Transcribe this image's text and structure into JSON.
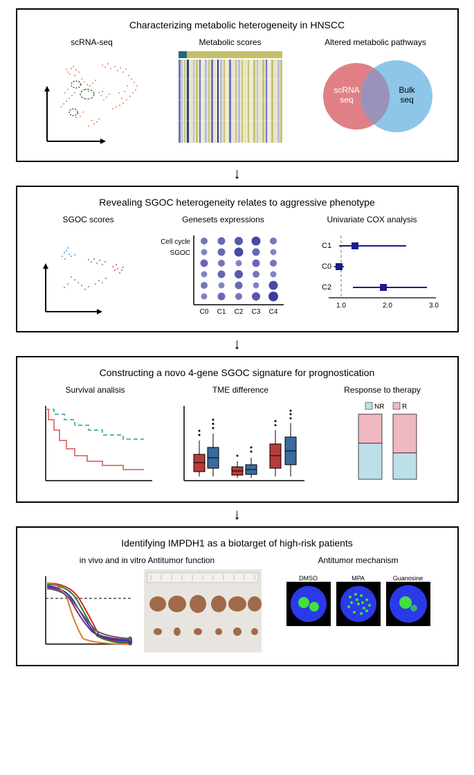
{
  "panel1": {
    "title": "Characterizing metabolic heterogeneity in HNSCC",
    "scrna_label": "scRNA-seq",
    "metab_label": "Metabolic scores",
    "venn_label": "Altered metabolic pathways",
    "venn_left": "scRNA\nseq",
    "venn_right": "Bulk\nseq",
    "scatter_color": "#e08a6e",
    "heatmap_header_left": "#1f6b7a",
    "heatmap_header_right": "#c4c06a",
    "heatmap_colors": [
      "#2e3a8c",
      "#6b74c2",
      "#b8bde0",
      "#e8e6c2",
      "#c9c36e",
      "#f2f0d8"
    ],
    "venn_left_color": "#e08086",
    "venn_right_color": "#8ec6ea",
    "venn_overlap_color": "#9a92b8"
  },
  "panel2": {
    "title": "Revealing SGOC heterogeneity relates to aggressive phenotype",
    "scores_label": "SGOC scores",
    "geneset_label": "Genesets expressions",
    "cox_label": "Univariate COX analysis",
    "dot_row_labels": [
      "Cell cycle",
      "SGOC"
    ],
    "dot_col_labels": [
      "C0",
      "C1",
      "C2",
      "C3",
      "C4"
    ],
    "dot_color": "#3b3b9e",
    "dot_matrix": [
      [
        6,
        7,
        8,
        9,
        6
      ],
      [
        5,
        7,
        9,
        7,
        5
      ],
      [
        7,
        6,
        5,
        7,
        6
      ],
      [
        5,
        7,
        8,
        6,
        5
      ],
      [
        6,
        5,
        7,
        5,
        9
      ],
      [
        5,
        7,
        6,
        8,
        10
      ]
    ],
    "cox_items": [
      {
        "label": "C1",
        "lo": 0.95,
        "hi": 2.4,
        "pt": 1.3
      },
      {
        "label": "C0",
        "lo": 0.85,
        "hi": 1.05,
        "pt": 0.95
      },
      {
        "label": "C2",
        "lo": 1.25,
        "hi": 2.85,
        "pt": 1.9
      }
    ],
    "cox_ticks": [
      "1.0",
      "2.0",
      "3.0"
    ],
    "cox_line_color": "#1b1b8c",
    "scatter_blue": "#6fa8d6",
    "scatter_red": "#e06a6a"
  },
  "panel3": {
    "title": "Constructing a novo 4-gene SGOC signature for prognostication",
    "survival_label": "Survival analisis",
    "tme_label": "TME difference",
    "therapy_label": "Response to therapy",
    "km_color1": "#5bb7a8",
    "km_color2": "#e77a7a",
    "box_red": "#b83a3a",
    "box_blue": "#3a6a9e",
    "nr_label": "NR",
    "r_label": "R",
    "nr_color": "#bde0e8",
    "r_color": "#f0b8c0",
    "stack1": {
      "nr": 0.55,
      "r": 0.45
    },
    "stack2": {
      "nr": 0.4,
      "r": 0.6
    }
  },
  "panel4": {
    "title": "Identifying IMPDH1 as a biotarget of high-risk patients",
    "invivo_label": "in vivo and in vitro Antitumor function",
    "mech_label": "Antitumor mechanism",
    "cond_labels": [
      "DMSO",
      "MPA",
      "Guanosine"
    ],
    "curve_colors": [
      "#d02828",
      "#2a7a2a",
      "#2a2ad0",
      "#7a2a7a",
      "#e07a2a",
      "#606060"
    ],
    "curve_black": "#2a2a2a",
    "tumor_color": "#a06a4a",
    "cell_bg": "#0a0a3a",
    "cell_nucleus": "#2a3ae8",
    "cell_green": "#40e040"
  }
}
